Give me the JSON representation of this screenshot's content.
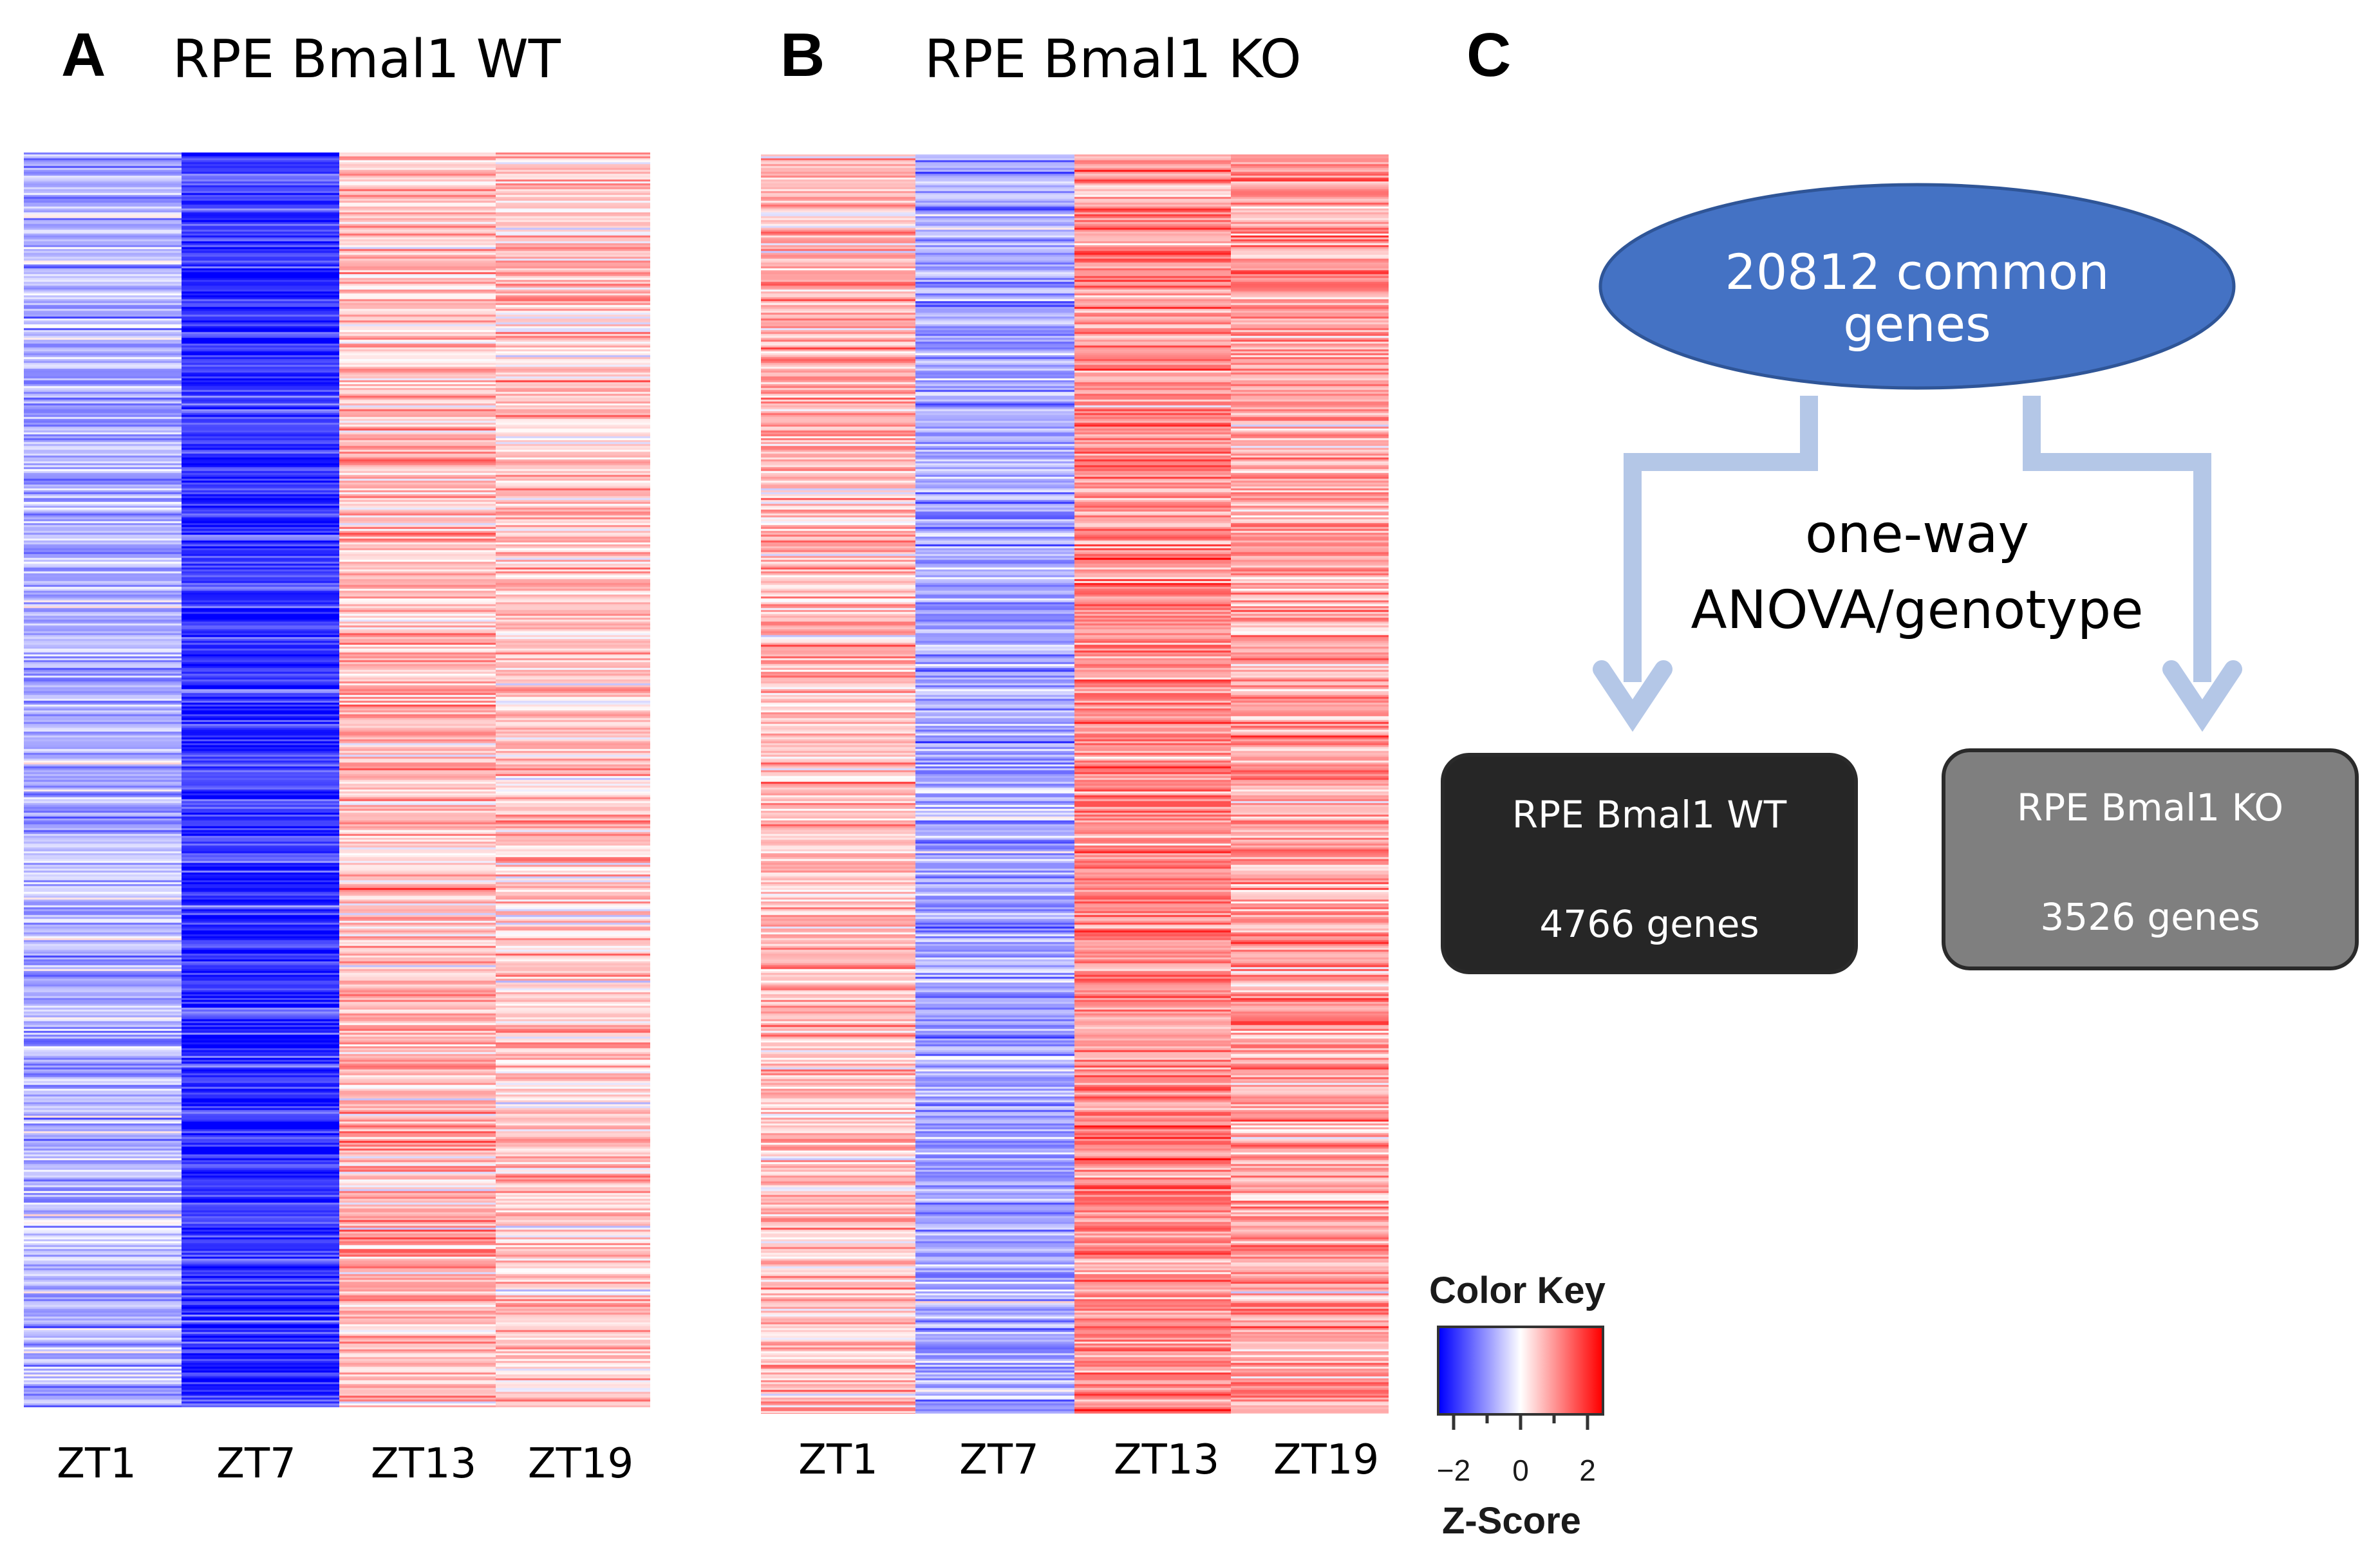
{
  "chart_data": [
    {
      "type": "heatmap",
      "panel": "A",
      "title": "RPE Bmal1 WT",
      "columns": [
        "ZT1",
        "ZT7",
        "ZT13",
        "ZT19"
      ],
      "column_mean_zscore": [
        -0.6,
        -1.6,
        0.5,
        0.4
      ],
      "color_scale": {
        "min": -2,
        "max": 2,
        "low": "#0000ff",
        "mid": "#ffffff",
        "high": "#ff0000"
      }
    },
    {
      "type": "heatmap",
      "panel": "B",
      "title": "RPE Bmal1 KO",
      "columns": [
        "ZT1",
        "ZT7",
        "ZT13",
        "ZT19"
      ],
      "column_mean_zscore": [
        0.5,
        -0.7,
        0.9,
        0.7
      ],
      "color_scale": {
        "min": -2,
        "max": 2,
        "low": "#0000ff",
        "mid": "#ffffff",
        "high": "#ff0000"
      }
    }
  ],
  "panels": {
    "a": {
      "letter": "A",
      "title": "RPE Bmal1 WT"
    },
    "b": {
      "letter": "B",
      "title": "RPE Bmal1 KO"
    },
    "c": {
      "letter": "C"
    }
  },
  "flowchart": {
    "top_node": {
      "line1": "20812 common",
      "line2": "genes",
      "color": "#4472c4"
    },
    "method": {
      "line1": "one-way",
      "line2": "ANOVA/genotype"
    },
    "arrow_color": "#b4c7e7",
    "left_box": {
      "title": "RPE Bmal1 WT",
      "count": "4766 genes",
      "color": "#262626"
    },
    "right_box": {
      "title": "RPE Bmal1 KO",
      "count": "3526 genes",
      "color": "#7f7f7f"
    }
  },
  "color_key": {
    "title": "Color Key",
    "xlabel": "Z-Score",
    "ticks": [
      "−2",
      "0",
      "2"
    ]
  }
}
